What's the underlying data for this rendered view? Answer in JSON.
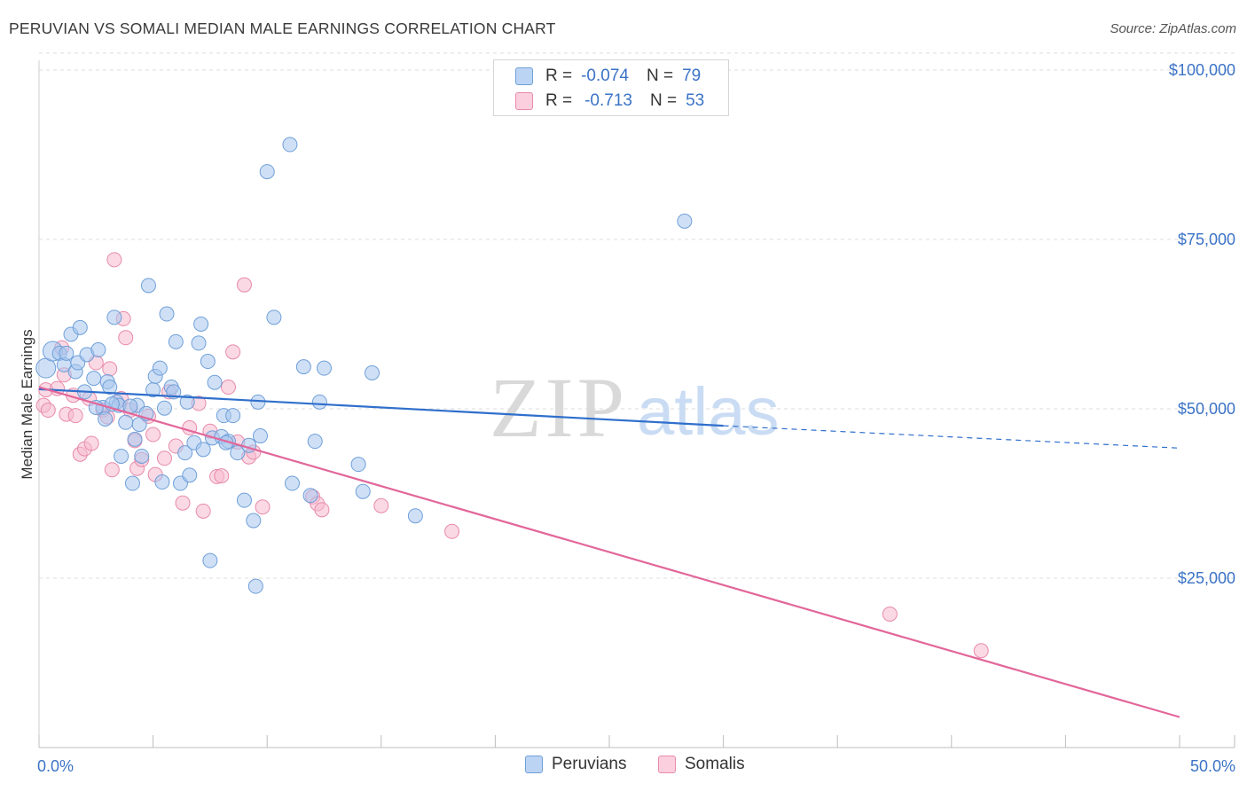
{
  "header": {
    "title": "PERUVIAN VS SOMALI MEDIAN MALE EARNINGS CORRELATION CHART",
    "source": "Source: ZipAtlas.com"
  },
  "legend": {
    "peruvians": {
      "r_label": "R =",
      "r_value": "-0.074",
      "n_label": "N =",
      "n_value": "79"
    },
    "somalis": {
      "r_label": "R =",
      "r_value": "-0.713",
      "n_label": "N =",
      "n_value": "53"
    }
  },
  "bottom_legend": {
    "peruvians": "Peruvians",
    "somalis": "Somalis"
  },
  "watermark": {
    "zip": "ZIP",
    "atlas": "atlas"
  },
  "colors": {
    "peruvians_fill": "#a8c6ef",
    "peruvians_stroke": "#6f9fd8",
    "peruvians_line": "#2f6fcc",
    "somalis_fill": "#f6b9cd",
    "somalis_stroke": "#e88aab",
    "somalis_line": "#e2679a",
    "axis_label": "#3b73c6"
  },
  "chart_data": {
    "type": "scatter",
    "title": "PERUVIAN VS SOMALI MEDIAN MALE EARNINGS CORRELATION CHART",
    "xlabel": "",
    "ylabel": "Median Male Earnings",
    "xlim": [
      0,
      50
    ],
    "ylim": [
      0,
      102500
    ],
    "x_tick_labels": [
      "0.0%",
      "50.0%"
    ],
    "y_ticks": [
      25000,
      50000,
      75000,
      100000
    ],
    "y_tick_labels": [
      "$25,000",
      "$50,000",
      "$75,000",
      "$100,000"
    ],
    "grid": "horizontal dashed",
    "legend_position": "top-center",
    "series": [
      {
        "name": "Peruvians",
        "r": -0.074,
        "n": 79,
        "trend": {
          "x0": 0,
          "y0": 52900,
          "x1": 30,
          "y1": 47500,
          "dashed_to_x": 50,
          "dashed_to_y": 44200
        },
        "points": [
          [
            0.3,
            56000
          ],
          [
            0.6,
            58500
          ],
          [
            0.9,
            58200
          ],
          [
            1.1,
            56500
          ],
          [
            1.4,
            61000
          ],
          [
            1.6,
            55500
          ],
          [
            1.7,
            56800
          ],
          [
            1.8,
            62000
          ],
          [
            2.0,
            52500
          ],
          [
            2.1,
            58000
          ],
          [
            2.4,
            54500
          ],
          [
            2.6,
            58700
          ],
          [
            2.8,
            50200
          ],
          [
            3.0,
            54000
          ],
          [
            3.1,
            53200
          ],
          [
            3.3,
            63500
          ],
          [
            3.4,
            51000
          ],
          [
            3.5,
            50500
          ],
          [
            3.6,
            43000
          ],
          [
            3.8,
            48000
          ],
          [
            4.1,
            39000
          ],
          [
            4.2,
            45500
          ],
          [
            4.3,
            50500
          ],
          [
            4.4,
            47700
          ],
          [
            4.5,
            43000
          ],
          [
            4.7,
            49300
          ],
          [
            4.8,
            68200
          ],
          [
            5.0,
            52800
          ],
          [
            5.1,
            54800
          ],
          [
            5.3,
            56000
          ],
          [
            5.4,
            39200
          ],
          [
            5.5,
            50100
          ],
          [
            5.6,
            64000
          ],
          [
            5.8,
            53200
          ],
          [
            6.0,
            59900
          ],
          [
            6.2,
            39000
          ],
          [
            6.4,
            43500
          ],
          [
            6.6,
            40200
          ],
          [
            6.8,
            45000
          ],
          [
            7.0,
            59700
          ],
          [
            7.1,
            62500
          ],
          [
            7.2,
            44000
          ],
          [
            7.4,
            57000
          ],
          [
            7.6,
            45700
          ],
          [
            7.7,
            53900
          ],
          [
            8.0,
            45900
          ],
          [
            8.1,
            49000
          ],
          [
            8.3,
            45200
          ],
          [
            8.5,
            49000
          ],
          [
            8.7,
            43500
          ],
          [
            9.0,
            36500
          ],
          [
            9.2,
            44600
          ],
          [
            9.4,
            33500
          ],
          [
            9.5,
            23800
          ],
          [
            9.6,
            51000
          ],
          [
            9.7,
            46000
          ],
          [
            10.0,
            85000
          ],
          [
            10.3,
            63500
          ],
          [
            11.0,
            89000
          ],
          [
            11.1,
            39000
          ],
          [
            11.6,
            56200
          ],
          [
            11.9,
            37200
          ],
          [
            12.1,
            45200
          ],
          [
            12.3,
            51000
          ],
          [
            12.5,
            56000
          ],
          [
            14.0,
            41800
          ],
          [
            14.2,
            37800
          ],
          [
            14.6,
            55300
          ],
          [
            16.5,
            34200
          ],
          [
            28.3,
            77700
          ],
          [
            7.5,
            27600
          ],
          [
            1.2,
            58200
          ],
          [
            2.5,
            50200
          ],
          [
            4.0,
            50400
          ],
          [
            6.5,
            51000
          ],
          [
            8.2,
            45000
          ],
          [
            3.2,
            50700
          ],
          [
            5.9,
            52500
          ],
          [
            2.9,
            48500
          ]
        ]
      },
      {
        "name": "Somalis",
        "r": -0.713,
        "n": 53,
        "trend": {
          "x0": 0,
          "y0": 53200,
          "x1": 50,
          "y1": 4500
        },
        "points": [
          [
            0.2,
            50500
          ],
          [
            0.3,
            52800
          ],
          [
            0.8,
            53000
          ],
          [
            1.0,
            59000
          ],
          [
            1.1,
            55000
          ],
          [
            1.2,
            49200
          ],
          [
            1.5,
            52000
          ],
          [
            1.6,
            49000
          ],
          [
            1.8,
            43300
          ],
          [
            2.0,
            44100
          ],
          [
            2.3,
            44900
          ],
          [
            2.5,
            56800
          ],
          [
            2.8,
            49800
          ],
          [
            3.0,
            48800
          ],
          [
            3.1,
            55900
          ],
          [
            3.2,
            41000
          ],
          [
            3.3,
            72000
          ],
          [
            3.6,
            51500
          ],
          [
            3.7,
            63300
          ],
          [
            3.8,
            60500
          ],
          [
            4.0,
            49800
          ],
          [
            4.2,
            45300
          ],
          [
            4.3,
            41200
          ],
          [
            4.5,
            42500
          ],
          [
            4.8,
            48900
          ],
          [
            5.0,
            46200
          ],
          [
            5.1,
            40300
          ],
          [
            5.5,
            42700
          ],
          [
            5.7,
            52500
          ],
          [
            6.0,
            44500
          ],
          [
            6.3,
            36100
          ],
          [
            6.6,
            47200
          ],
          [
            7.0,
            50800
          ],
          [
            7.2,
            34900
          ],
          [
            7.5,
            46700
          ],
          [
            7.8,
            40000
          ],
          [
            8.0,
            40100
          ],
          [
            8.3,
            53200
          ],
          [
            8.5,
            58400
          ],
          [
            8.7,
            45100
          ],
          [
            9.0,
            68300
          ],
          [
            9.2,
            42900
          ],
          [
            9.4,
            43600
          ],
          [
            9.8,
            35500
          ],
          [
            12.0,
            37000
          ],
          [
            12.2,
            36000
          ],
          [
            12.4,
            35100
          ],
          [
            15.0,
            35700
          ],
          [
            18.1,
            31900
          ],
          [
            37.3,
            19700
          ],
          [
            41.3,
            14300
          ],
          [
            0.4,
            49800
          ],
          [
            2.2,
            51500
          ]
        ]
      }
    ]
  }
}
